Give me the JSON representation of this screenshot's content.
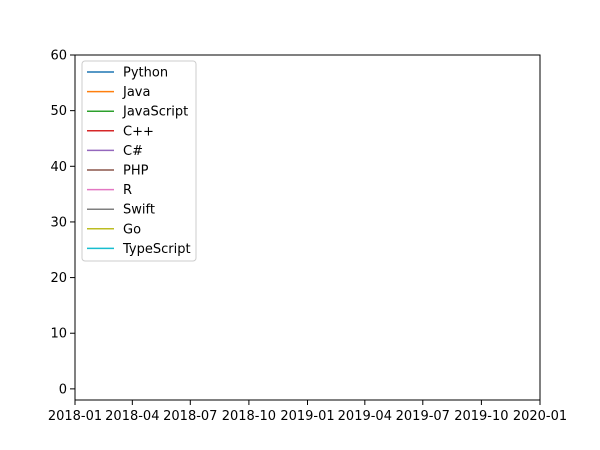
{
  "chart_data": {
    "type": "line",
    "title": "",
    "xlabel": "",
    "ylabel": "",
    "xlim": [
      "2018-01-01",
      "2020-01-01"
    ],
    "ylim": [
      -2,
      60
    ],
    "x_ticks": [
      "2018-01",
      "2018-04",
      "2018-07",
      "2018-10",
      "2019-01",
      "2019-04",
      "2019-07",
      "2019-10",
      "2020-01"
    ],
    "y_ticks": [
      0,
      10,
      20,
      30,
      40,
      50,
      60
    ],
    "grid": false,
    "legend_position": "top-left",
    "series": [
      {
        "name": "Python",
        "color": "#1f77b4",
        "x": [],
        "y": []
      },
      {
        "name": "Java",
        "color": "#ff7f0e",
        "x": [],
        "y": []
      },
      {
        "name": "JavaScript",
        "color": "#2ca02c",
        "x": [],
        "y": []
      },
      {
        "name": "C++",
        "color": "#d62728",
        "x": [],
        "y": []
      },
      {
        "name": "C#",
        "color": "#9467bd",
        "x": [],
        "y": []
      },
      {
        "name": "PHP",
        "color": "#8c564b",
        "x": [],
        "y": []
      },
      {
        "name": "R",
        "color": "#e377c2",
        "x": [],
        "y": []
      },
      {
        "name": "Swift",
        "color": "#7f7f7f",
        "x": [],
        "y": []
      },
      {
        "name": "Go",
        "color": "#bcbd22",
        "x": [],
        "y": []
      },
      {
        "name": "TypeScript",
        "color": "#17becf",
        "x": [],
        "y": []
      }
    ]
  }
}
